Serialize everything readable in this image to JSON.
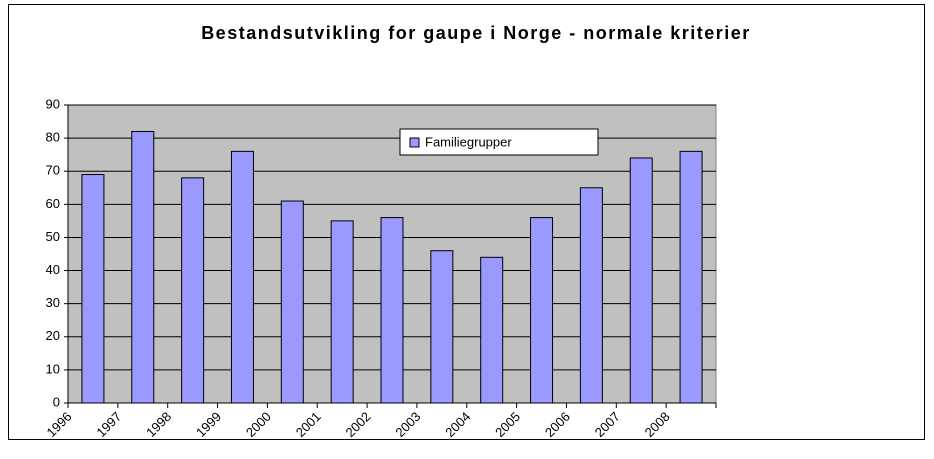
{
  "chart_data": {
    "type": "bar",
    "title": "Bestandsutvikling for gaupe i Norge - normale kriterier",
    "categories": [
      "1996",
      "1997",
      "1998",
      "1999",
      "2000",
      "2001",
      "2002",
      "2003",
      "2004",
      "2005",
      "2006",
      "2007",
      "2008"
    ],
    "series": [
      {
        "name": "Familiegrupper",
        "color": "#9999ff",
        "values": [
          69,
          82,
          68,
          76,
          61,
          55,
          56,
          46,
          44,
          56,
          65,
          74,
          76
        ]
      }
    ],
    "ylim": [
      0,
      90
    ],
    "yticks": [
      0,
      10,
      20,
      30,
      40,
      50,
      60,
      70,
      80,
      90
    ],
    "grid": true,
    "legend": "top-center"
  }
}
